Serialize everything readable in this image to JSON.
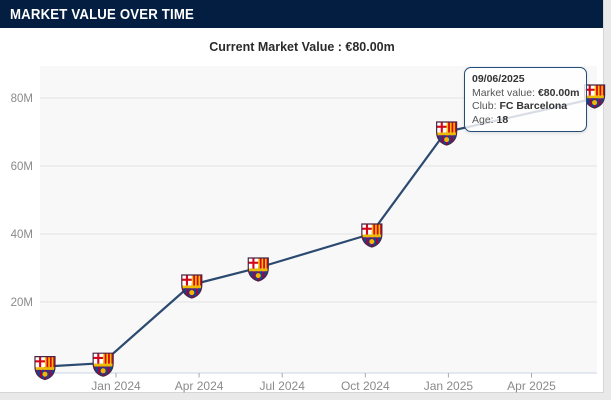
{
  "header": {
    "title": "MARKET VALUE OVER TIME"
  },
  "subtitle": {
    "text": "Current Market Value : €80.00m"
  },
  "tooltip": {
    "date": "09/06/2025",
    "rows": [
      {
        "label": "Market value: ",
        "value": "€80.00m"
      },
      {
        "label": "Club: ",
        "value": "FC Barcelona"
      },
      {
        "label": "Age: ",
        "value": "18"
      }
    ]
  },
  "chart_data": {
    "type": "line",
    "title": "Market value over time",
    "series_name": "Market value",
    "marker": "fc-barcelona-crest",
    "x_ticks": [
      {
        "label": "Jan 2024",
        "month_offset": 0
      },
      {
        "label": "Apr 2024",
        "month_offset": 3
      },
      {
        "label": "Jul 2024",
        "month_offset": 6
      },
      {
        "label": "Oct 2024",
        "month_offset": 9
      },
      {
        "label": "Jan 2025",
        "month_offset": 12
      },
      {
        "label": "Apr 2025",
        "month_offset": 15
      }
    ],
    "y_ticks": [
      {
        "label": "20M",
        "value_m": 20
      },
      {
        "label": "40M",
        "value_m": 40
      },
      {
        "label": "60M",
        "value_m": 60
      },
      {
        "label": "80M",
        "value_m": 80
      }
    ],
    "ylim": [
      0,
      89
    ],
    "grid": true,
    "points": [
      {
        "date": "10/2023",
        "month_offset": -2.6,
        "value_m": 1,
        "club": "FC Barcelona"
      },
      {
        "date": "12/2023",
        "month_offset": -0.5,
        "value_m": 2,
        "club": "FC Barcelona"
      },
      {
        "date": "03/2024",
        "month_offset": 2.7,
        "value_m": 25,
        "club": "FC Barcelona"
      },
      {
        "date": "06/2024",
        "month_offset": 5.1,
        "value_m": 30,
        "club": "FC Barcelona"
      },
      {
        "date": "10/2024",
        "month_offset": 9.2,
        "value_m": 40,
        "club": "FC Barcelona"
      },
      {
        "date": "12/2024",
        "month_offset": 11.9,
        "value_m": 70,
        "club": "FC Barcelona"
      },
      {
        "date": "09/06/2025",
        "month_offset": 17.35,
        "value_m": 80,
        "club": "FC Barcelona",
        "highlighted": true
      }
    ],
    "colors": {
      "line": "#2c4a70",
      "plot_bg": "#f8f8f8",
      "gridline": "#e2e2e2",
      "axis_line": "#c9d6e2",
      "tick_text": "#8a8a8a",
      "header_bg": "#041e42",
      "tooltip_border": "#234e79"
    }
  }
}
